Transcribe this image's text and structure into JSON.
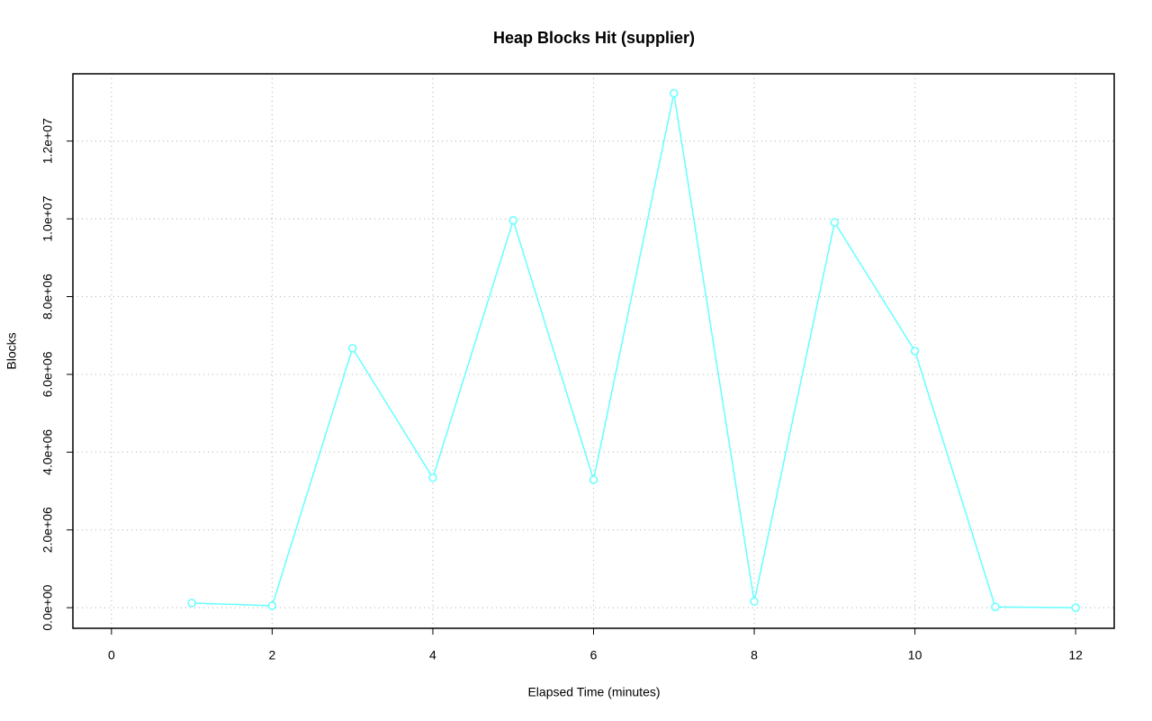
{
  "chart_data": {
    "type": "line",
    "title": "Heap Blocks Hit (supplier)",
    "xlabel": "Elapsed Time (minutes)",
    "ylabel": "Blocks",
    "x": [
      1,
      2,
      3,
      4,
      5,
      6,
      7,
      8,
      9,
      10,
      11,
      12
    ],
    "series": [
      {
        "name": "supplier",
        "color": "#66ffff",
        "values": [
          120000,
          50000,
          6670000,
          3340000,
          9960000,
          3290000,
          13230000,
          160000,
          9910000,
          6600000,
          20000,
          0
        ]
      }
    ],
    "xlim": [
      -0.48,
      12.48
    ],
    "xticks": [
      0,
      2,
      4,
      6,
      8,
      10,
      12
    ],
    "ylim": [
      -530000,
      13730000
    ],
    "yticks": [
      {
        "value": 0,
        "label": "0.0e+00"
      },
      {
        "value": 2000000,
        "label": "2.0e+06"
      },
      {
        "value": 4000000,
        "label": "4.0e+06"
      },
      {
        "value": 6000000,
        "label": "6.0e+06"
      },
      {
        "value": 8000000,
        "label": "8.0e+06"
      },
      {
        "value": 10000000,
        "label": "1.0e+07"
      },
      {
        "value": 12000000,
        "label": "1.2e+07"
      }
    ],
    "grid": true
  }
}
